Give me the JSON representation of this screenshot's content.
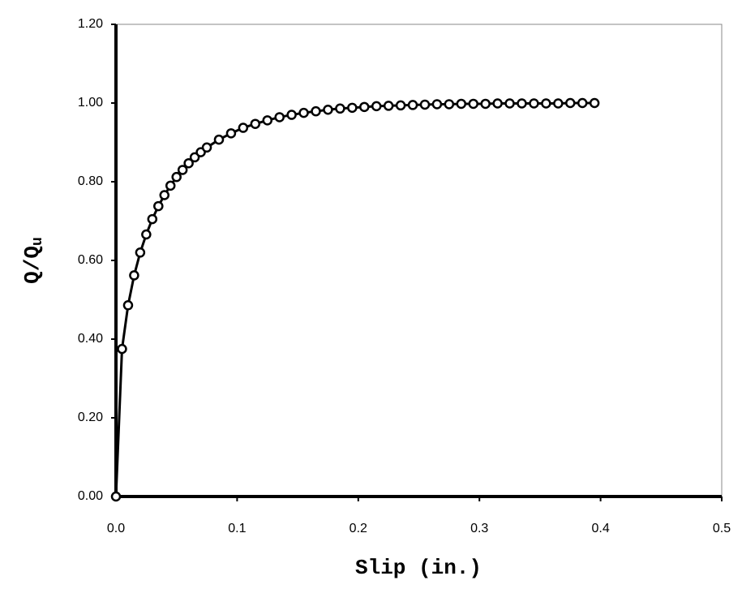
{
  "chart_data": {
    "type": "scatter-line",
    "xlabel": "Slip (in.)",
    "ylabel": {
      "text": "Q/Q",
      "subscript": "u"
    },
    "x": [
      0,
      0.005,
      0.01,
      0.015,
      0.02,
      0.025,
      0.03,
      0.035,
      0.04,
      0.045,
      0.05,
      0.055,
      0.06,
      0.065,
      0.07,
      0.075,
      0.085,
      0.095,
      0.105,
      0.115,
      0.125,
      0.135,
      0.145,
      0.155,
      0.165,
      0.175,
      0.185,
      0.195,
      0.205,
      0.215,
      0.225,
      0.235,
      0.245,
      0.255,
      0.265,
      0.275,
      0.285,
      0.295,
      0.305,
      0.315,
      0.325,
      0.335,
      0.345,
      0.355,
      0.365,
      0.375,
      0.385,
      0.395
    ],
    "values": [
      0,
      0.375,
      0.486,
      0.562,
      0.62,
      0.666,
      0.705,
      0.738,
      0.766,
      0.79,
      0.812,
      0.83,
      0.847,
      0.862,
      0.875,
      0.887,
      0.907,
      0.923,
      0.937,
      0.947,
      0.956,
      0.964,
      0.97,
      0.975,
      0.979,
      0.983,
      0.986,
      0.988,
      0.99,
      0.992,
      0.993,
      0.994,
      0.995,
      0.996,
      0.997,
      0.997,
      0.998,
      0.998,
      0.998,
      0.999,
      0.999,
      0.999,
      0.999,
      0.999,
      0.999,
      1.0,
      1.0,
      1.0
    ],
    "color": "#000000",
    "marker_fill": "#ffffff",
    "xlim": [
      0,
      0.5
    ],
    "xticks": [
      {
        "value": 0,
        "label": "0.0"
      },
      0.1,
      0.2,
      0.3,
      0.4,
      0.5
    ],
    "ylim": [
      0,
      1.2
    ],
    "yticks": [
      {
        "value": 0,
        "label": "0.00"
      },
      {
        "value": 0.2,
        "label": "0.20"
      },
      {
        "value": 0.4,
        "label": "0.40"
      },
      {
        "value": 0.6,
        "label": "0.60"
      },
      {
        "value": 0.8,
        "label": "0.80"
      },
      {
        "value": 1.0,
        "label": "1.00"
      },
      {
        "value": 1.2,
        "label": "1.20"
      }
    ],
    "grid": false
  }
}
